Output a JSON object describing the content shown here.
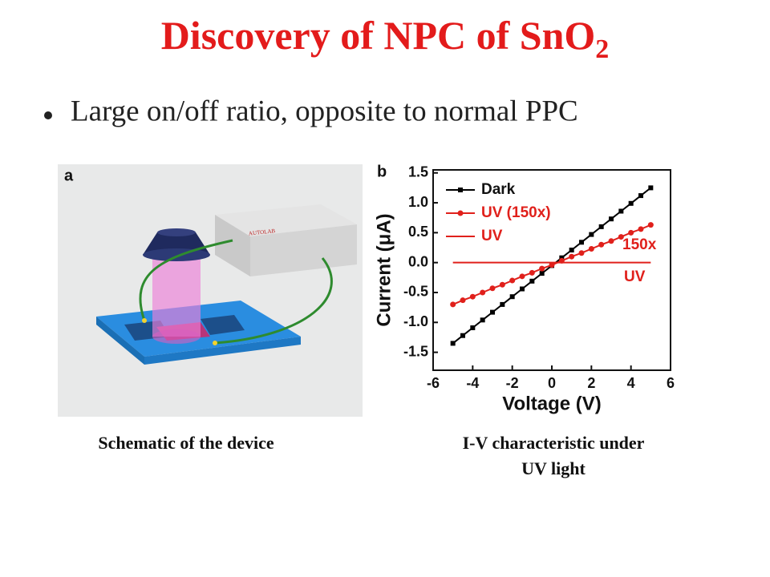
{
  "title": [
    "Discovery of NPC of SnO",
    "2"
  ],
  "bullet": "Large on/off ratio, opposite to normal PPC",
  "schematic": {
    "panel_label": "a",
    "instrument_label": "AUTOLAB"
  },
  "caption_a": "Schematic of the device",
  "caption_b": [
    "I-V characteristic under",
    "UV light"
  ],
  "chart_data": {
    "type": "line",
    "panel_label": "b",
    "x_label": "Voltage (V)",
    "y_label": "Current (μA)",
    "xlim": [
      -6,
      6
    ],
    "xticks": [
      -6,
      -4,
      -2,
      0,
      2,
      4,
      6
    ],
    "ylim": [
      -1.8,
      1.55
    ],
    "yticks": [
      {
        "value": -1.5,
        "label": "-1.5"
      },
      {
        "value": -1,
        "label": "-1.0"
      },
      {
        "value": -0.5,
        "label": "-0.5"
      },
      {
        "value": 0,
        "label": "0.0"
      },
      {
        "value": 0.5,
        "label": "0.5"
      },
      {
        "value": 1,
        "label": "1.0"
      },
      1.5
    ],
    "x": [
      -5,
      -4.5,
      -4,
      -3.5,
      -3,
      -2.5,
      -2,
      -1.5,
      -1,
      -0.5,
      0,
      0.5,
      1,
      1.5,
      2,
      2.5,
      3,
      3.5,
      4,
      4.5,
      5
    ],
    "series": [
      {
        "name": "Dark",
        "color": "#000000",
        "marker": "square",
        "values": [
          -1.35,
          -1.22,
          -1.09,
          -0.96,
          -0.83,
          -0.7,
          -0.57,
          -0.44,
          -0.31,
          -0.18,
          -0.05,
          0.08,
          0.21,
          0.34,
          0.47,
          0.6,
          0.73,
          0.86,
          0.99,
          1.12,
          1.25
        ]
      },
      {
        "name": "UV (150x)",
        "color": "#e0201b",
        "marker": "circle",
        "values": [
          -0.7,
          -0.63,
          -0.57,
          -0.5,
          -0.43,
          -0.37,
          -0.3,
          -0.23,
          -0.17,
          -0.1,
          -0.04,
          0.03,
          0.1,
          0.16,
          0.23,
          0.3,
          0.36,
          0.43,
          0.5,
          0.56,
          0.63
        ]
      },
      {
        "name": "UV",
        "color": "#e0201b",
        "marker": "none",
        "values": [
          0,
          0,
          0,
          0,
          0,
          0,
          0,
          0,
          0,
          0,
          0,
          0,
          0,
          0,
          0,
          0,
          0,
          0,
          0,
          0,
          0
        ]
      }
    ],
    "annotations": [
      "150x",
      "UV"
    ],
    "legend": "upper-left"
  }
}
